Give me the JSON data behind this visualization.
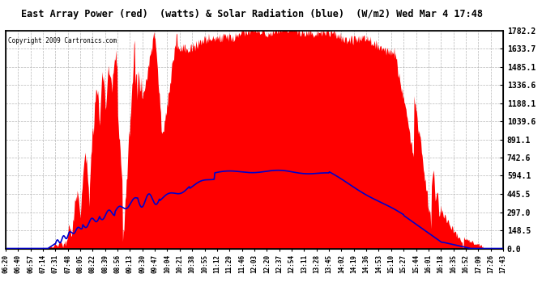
{
  "title": "East Array Power (red)  (watts) & Solar Radiation (blue)  (W/m2) Wed Mar 4 17:48",
  "copyright": "Copyright 2009 Cartronics.com",
  "bg_color": "#ffffff",
  "plot_bg_color": "#ffffff",
  "red_color": "#ff0000",
  "blue_color": "#0000cc",
  "grid_color": "#b0b0b0",
  "yticks": [
    0.0,
    148.5,
    297.0,
    445.5,
    594.1,
    742.6,
    891.1,
    1039.6,
    1188.1,
    1336.6,
    1485.1,
    1633.7,
    1782.2
  ],
  "ymax": 1782.2,
  "xtick_labels": [
    "06:20",
    "06:40",
    "06:57",
    "07:14",
    "07:31",
    "07:48",
    "08:05",
    "08:22",
    "08:39",
    "08:56",
    "09:13",
    "09:30",
    "09:47",
    "10:04",
    "10:21",
    "10:38",
    "10:55",
    "11:12",
    "11:29",
    "11:46",
    "12:03",
    "12:20",
    "12:37",
    "12:54",
    "13:11",
    "13:28",
    "13:45",
    "14:02",
    "14:19",
    "14:36",
    "14:53",
    "15:10",
    "15:27",
    "15:44",
    "16:01",
    "16:18",
    "16:35",
    "16:52",
    "17:09",
    "17:26",
    "17:43"
  ]
}
